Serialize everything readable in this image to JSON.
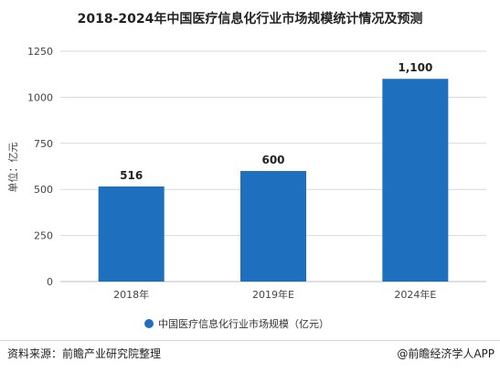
{
  "title": "2018-2024年中国医疗信息化行业市场规模统计情况及预测",
  "chart_data": {
    "type": "bar",
    "categories": [
      "2018年",
      "2019年E",
      "2024年E"
    ],
    "series": [
      {
        "name": "中国医疗信息化行业市场规模（亿元）",
        "values": [
          516,
          600,
          1100
        ]
      }
    ],
    "value_labels": [
      "516",
      "600",
      "1,100"
    ],
    "ylabel": "单位：亿元",
    "ylim": [
      0,
      1250
    ],
    "yticks": [
      "0",
      "250",
      "500",
      "750",
      "1000",
      "1250"
    ],
    "ytick_values": [
      0,
      250,
      500,
      750,
      1000,
      1250
    ],
    "grid": true,
    "legend": "bottom"
  },
  "colors": {
    "bar": "#1f6fbf",
    "grid": "#d9d9d9",
    "axis": "#bfbfbf",
    "text": "#444444"
  },
  "watermark": "前瞻产业研究院",
  "footer": {
    "source": "资料来源：前瞻产业研究院整理",
    "brand": "@前瞻经济学人APP"
  }
}
